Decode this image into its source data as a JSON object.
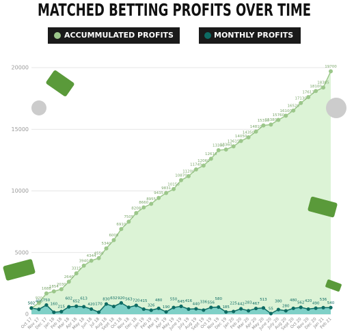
{
  "chart_data": {
    "type": "area",
    "title": "MATCHED BETTING PROFITS OVER TIME",
    "categories": [
      "Oct 17",
      "Nov 17",
      "Dec 17",
      "Jan 18",
      "Feb 18",
      "Mar 18",
      "Apr 18",
      "May 18",
      "Jun 18",
      "Jul 18",
      "Aug 18",
      "Sept 18",
      "Oct 18",
      "Nov 18",
      "Dec 18",
      "Jan 19",
      "Feb 19",
      "Mar 19",
      "Apr 19",
      "May 19",
      "June 19",
      "July 19",
      "Aug 19",
      "Sept 19",
      "Oct 19",
      "Nov 19",
      "Dec 19",
      "Jan 20",
      "Feb 20",
      "Mar 20",
      "Apr 20",
      "May 20",
      "June 20",
      "July 20",
      "Aug 20",
      "Sept 20",
      "Oct 20",
      "Nov 20",
      "Dec 20",
      "Jan 21",
      "Feb 21"
    ],
    "series": [
      {
        "name": "ACCUMMULATED PROFITS",
        "color": "#9cc78b",
        "fill": "#dcf3d6",
        "values": [
          502,
          920,
          1688,
          1854,
          2030,
          2640,
          3315,
          3940,
          4344,
          4550,
          5340,
          6008,
          6910,
          7505,
          8208,
          8660,
          8955,
          9435,
          9831,
          10150,
          10870,
          11200,
          11745,
          12060,
          12610,
          13300,
          13360,
          13615,
          14050,
          14350,
          14810,
          15310,
          15380,
          15760,
          16100,
          16520,
          17130,
          17613,
          18100,
          18385,
          19700
        ]
      },
      {
        "name": "MONTHLY PROFITS",
        "color": "#0d6b63",
        "fill": "#7fd0c7",
        "values": [
          502,
          400,
          750,
          160,
          215,
          602,
          652,
          613,
          420,
          170,
          830,
          632,
          920,
          563,
          720,
          415,
          326,
          480,
          190,
          550,
          645,
          416,
          440,
          336,
          556,
          580,
          185,
          225,
          442,
          283,
          467,
          513,
          55,
          380,
          280,
          480,
          562,
          420,
          490,
          536,
          540
        ]
      }
    ],
    "ylim": [
      0,
      20000
    ],
    "yticks": [
      0,
      5000,
      10000,
      15000,
      20000
    ],
    "grid": true
  }
}
